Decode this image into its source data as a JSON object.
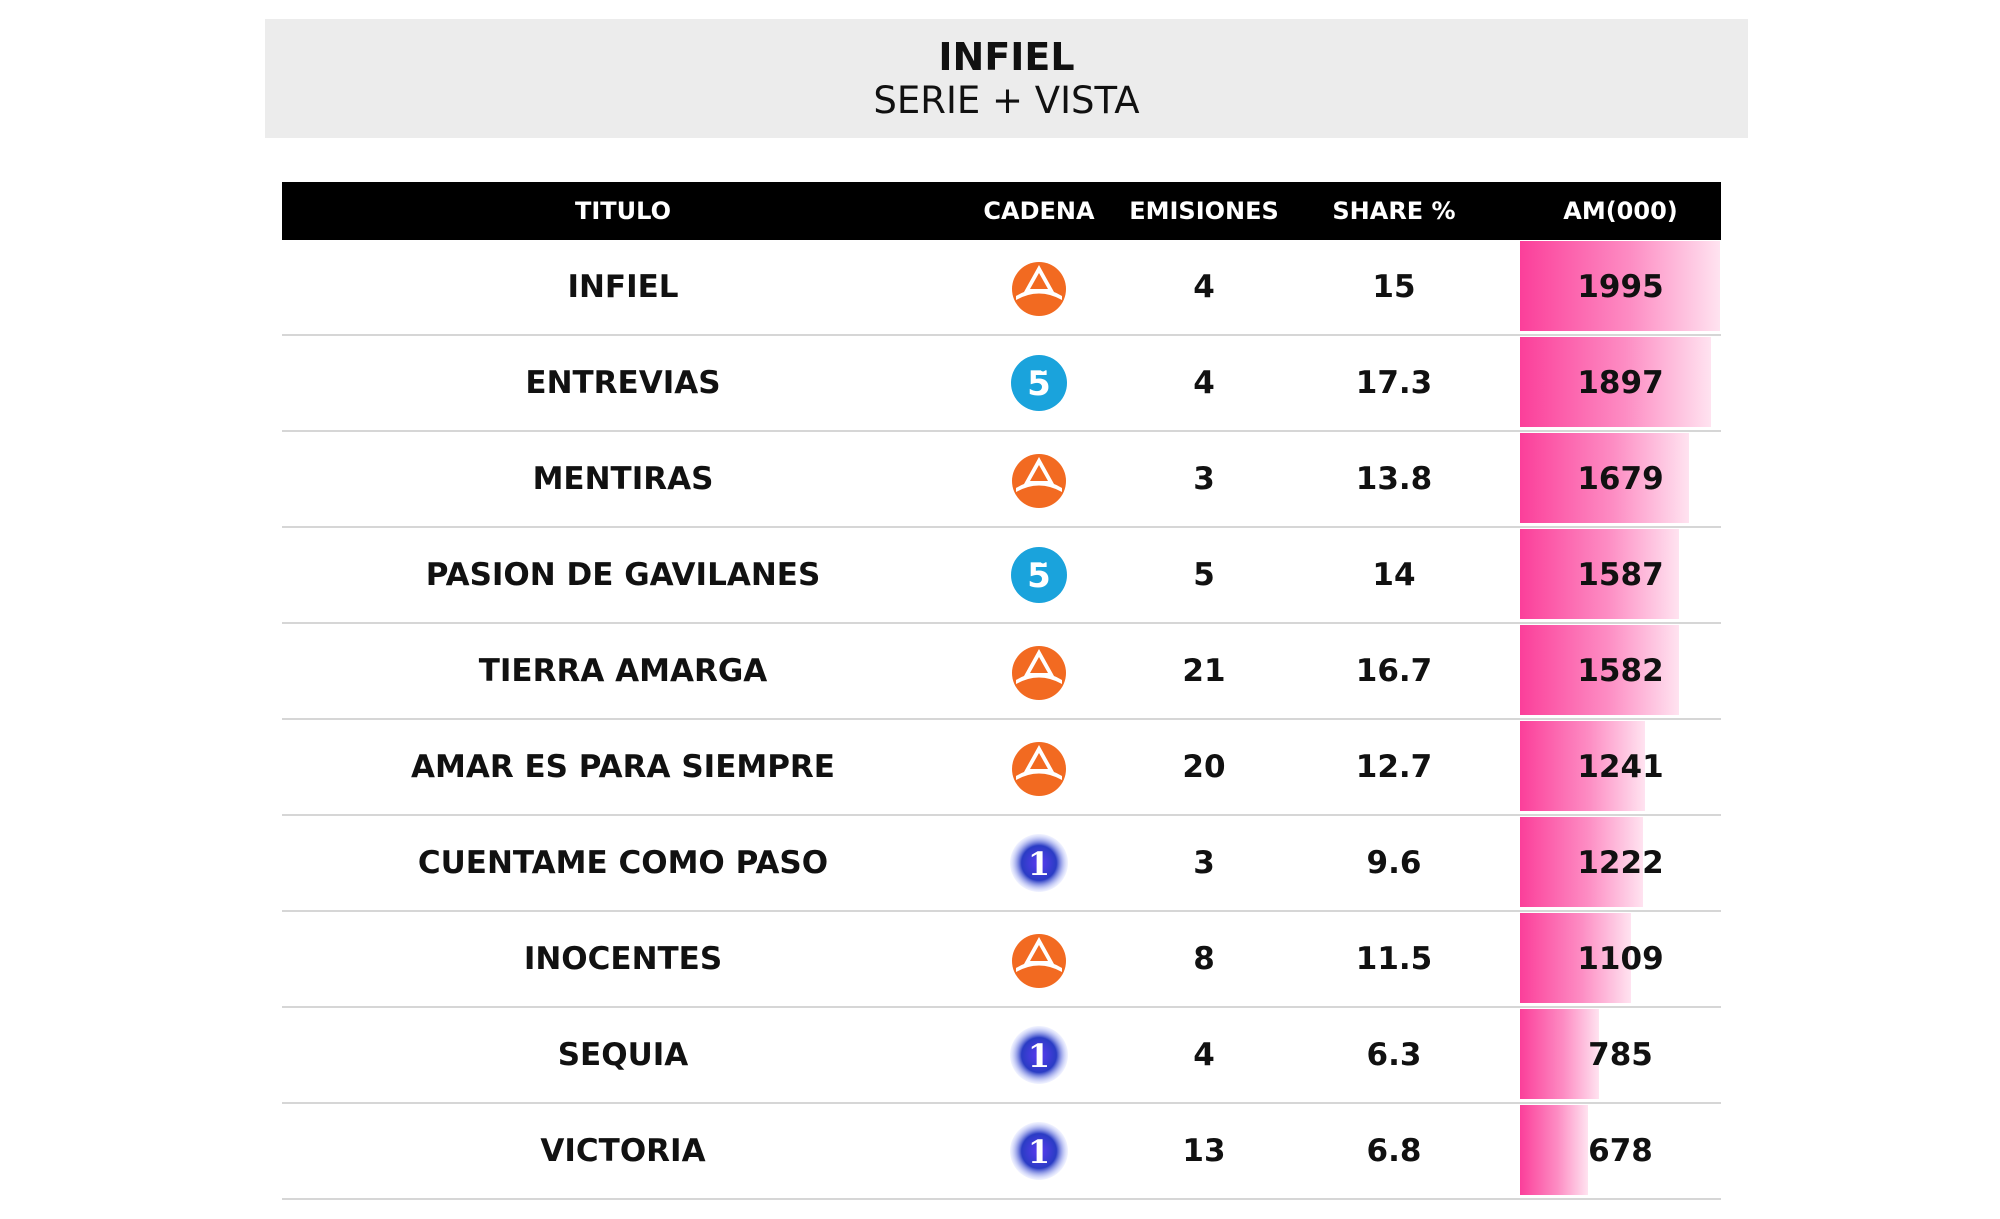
{
  "header": {
    "title": "INFIEL",
    "subtitle": "SERIE + VISTA"
  },
  "columns": {
    "titulo": "TITULO",
    "cadena": "CADENA",
    "emisiones": "EMISIONES",
    "share": "SHARE %",
    "am": "AM(000)"
  },
  "colors": {
    "bar_start": "#fb3f9a",
    "bar_end": "#ffe3f0",
    "antena3": "#f26a21",
    "telecinco": "#1aa3dc",
    "la1": "#2a3cc4"
  },
  "chart_data": {
    "type": "table",
    "bar_max": 2000,
    "rows": [
      {
        "titulo": "INFIEL",
        "cadena": "antena3-logo",
        "emisiones": "4",
        "share": "15",
        "am": 1995
      },
      {
        "titulo": "ENTREVIAS",
        "cadena": "telecinco-logo",
        "emisiones": "4",
        "share": "17.3",
        "am": 1897
      },
      {
        "titulo": "MENTIRAS",
        "cadena": "antena3-logo",
        "emisiones": "3",
        "share": "13.8",
        "am": 1679
      },
      {
        "titulo": "PASION DE GAVILANES",
        "cadena": "telecinco-logo",
        "emisiones": "5",
        "share": "14",
        "am": 1587
      },
      {
        "titulo": "TIERRA AMARGA",
        "cadena": "antena3-logo",
        "emisiones": "21",
        "share": "16.7",
        "am": 1582
      },
      {
        "titulo": "AMAR ES PARA SIEMPRE",
        "cadena": "antena3-logo",
        "emisiones": "20",
        "share": "12.7",
        "am": 1241
      },
      {
        "titulo": "CUENTAME COMO PASO",
        "cadena": "la1-logo",
        "emisiones": "3",
        "share": "9.6",
        "am": 1222
      },
      {
        "titulo": "INOCENTES",
        "cadena": "antena3-logo",
        "emisiones": "8",
        "share": "11.5",
        "am": 1109
      },
      {
        "titulo": "SEQUIA",
        "cadena": "la1-logo",
        "emisiones": "4",
        "share": "6.3",
        "am": 785
      },
      {
        "titulo": "VICTORIA",
        "cadena": "la1-logo",
        "emisiones": "13",
        "share": "6.8",
        "am": 678
      }
    ]
  }
}
